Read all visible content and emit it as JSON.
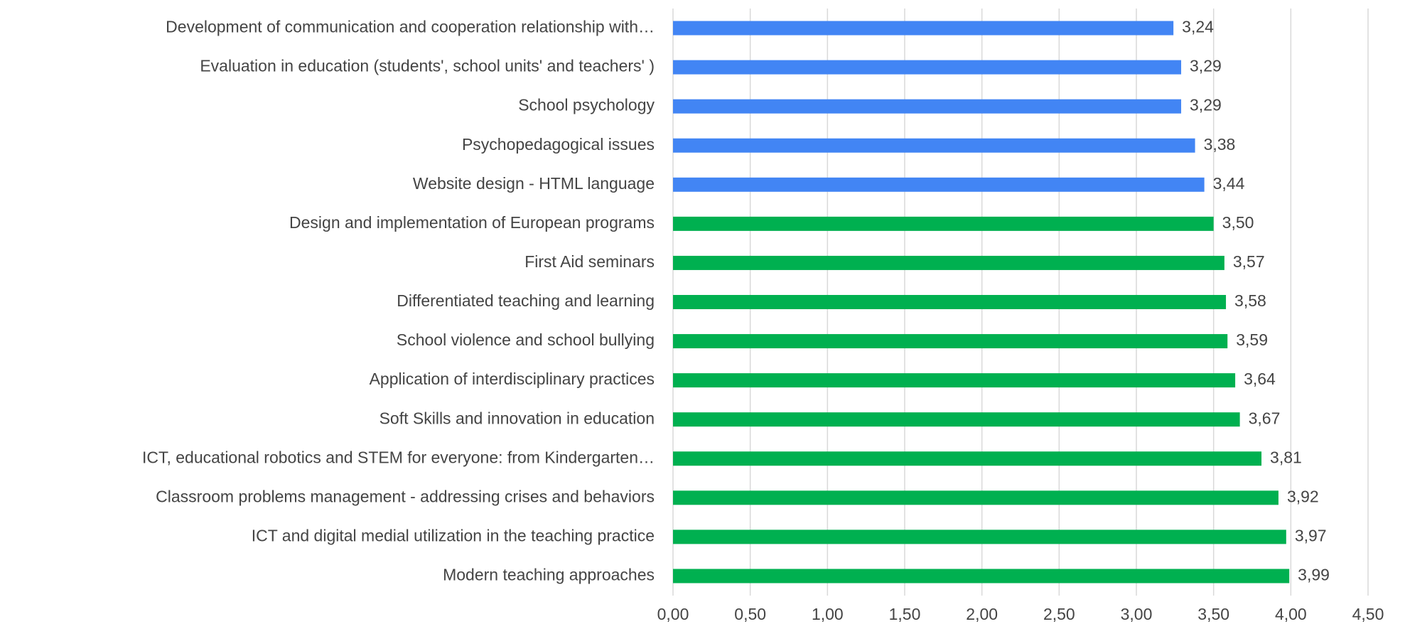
{
  "chart_data": {
    "type": "bar",
    "orientation": "horizontal",
    "categories": [
      "Development of communication and cooperation relationship with…",
      "Evaluation in education (students', school units' and teachers' )",
      "School psychology",
      "Psychopedagogical issues",
      "Website design - HTML language",
      "Design and implementation of European programs",
      "First Aid seminars",
      "Differentiated teaching and learning",
      "School violence and school bullying",
      "Application of interdisciplinary practices",
      "Soft Skills and innovation in education",
      "ICT, educational robotics and STEM for everyone: from Kindergarten…",
      "Classroom problems management - addressing crises and behaviors",
      "ICT and digital medial utilization in the teaching practice",
      "Modern teaching approaches"
    ],
    "values": [
      3.24,
      3.29,
      3.29,
      3.38,
      3.44,
      3.5,
      3.57,
      3.58,
      3.59,
      3.64,
      3.67,
      3.81,
      3.92,
      3.97,
      3.99
    ],
    "value_labels": [
      "3,24",
      "3,29",
      "3,29",
      "3,38",
      "3,44",
      "3,50",
      "3,57",
      "3,58",
      "3,59",
      "3,64",
      "3,67",
      "3,81",
      "3,92",
      "3,97",
      "3,99"
    ],
    "colors": [
      "#4285f4",
      "#4285f4",
      "#4285f4",
      "#4285f4",
      "#4285f4",
      "#00b050",
      "#00b050",
      "#00b050",
      "#00b050",
      "#00b050",
      "#00b050",
      "#00b050",
      "#00b050",
      "#00b050",
      "#00b050"
    ],
    "xlim": [
      0,
      4.5
    ],
    "xticks": [
      {
        "value": 0,
        "label": "0,00"
      },
      {
        "value": 0.5,
        "label": "0,50"
      },
      {
        "value": 1,
        "label": "1,00"
      },
      {
        "value": 1.5,
        "label": "1,50"
      },
      {
        "value": 2,
        "label": "2,00"
      },
      {
        "value": 2.5,
        "label": "2,50"
      },
      {
        "value": 3,
        "label": "3,00"
      },
      {
        "value": 3.5,
        "label": "3,50"
      },
      {
        "value": 4,
        "label": "4,00"
      },
      {
        "value": 4.5,
        "label": "4,50"
      }
    ],
    "grid": true
  }
}
